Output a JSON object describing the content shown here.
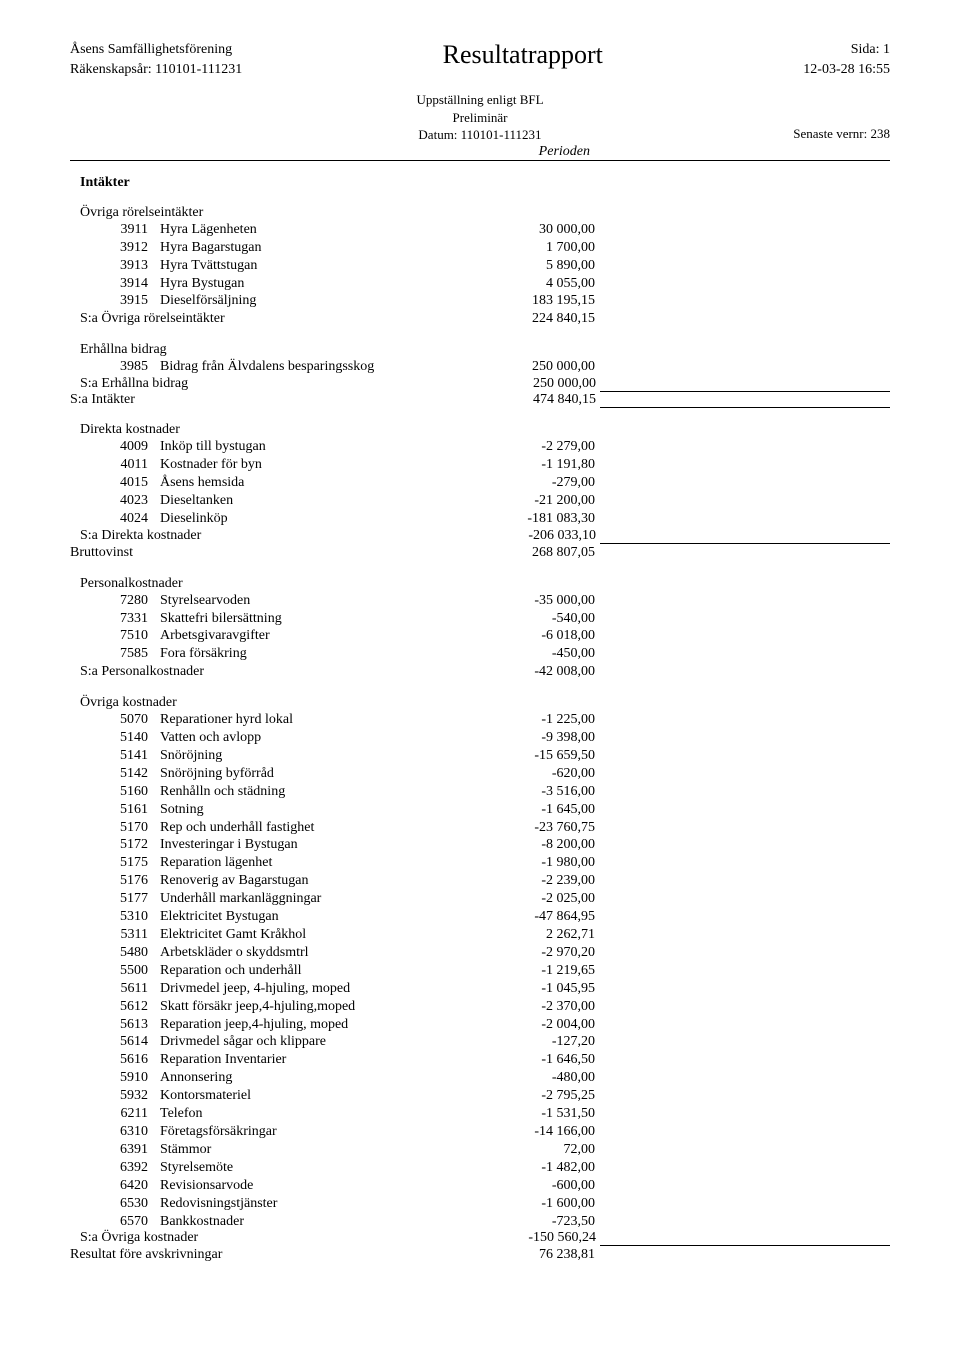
{
  "header": {
    "org": "Åsens Samfällighetsförening",
    "fiscal_year": "Räkenskapsår: 110101-111231",
    "title": "Resultatrapport",
    "page": "Sida: 1",
    "datetime": "12-03-28  16:55",
    "sub1": "Uppställning enligt BFL",
    "sub2": "Preliminär",
    "sub3": "Datum: 110101-111231",
    "vernr": "Senaste vernr: 238",
    "period": "Perioden"
  },
  "sections": {
    "intakter_title": "Intäkter",
    "ovriga_intakter_title": "Övriga rörelseintäkter",
    "ovriga_intakter": [
      {
        "code": "3911",
        "label": "Hyra Lägenheten",
        "value": "30 000,00"
      },
      {
        "code": "3912",
        "label": "Hyra Bagarstugan",
        "value": "1 700,00"
      },
      {
        "code": "3913",
        "label": "Hyra Tvättstugan",
        "value": "5 890,00"
      },
      {
        "code": "3914",
        "label": "Hyra Bystugan",
        "value": "4 055,00"
      },
      {
        "code": "3915",
        "label": "Dieselförsäljning",
        "value": "183 195,15"
      }
    ],
    "sa_ovriga_intakter": {
      "label": "S:a Övriga rörelseintäkter",
      "value": "224 840,15"
    },
    "erhallna_title": "Erhållna bidrag",
    "erhallna": [
      {
        "code": "3985",
        "label": "Bidrag från Älvdalens besparingsskog",
        "value": "250 000,00"
      }
    ],
    "sa_erhallna": {
      "label": "S:a Erhållna bidrag",
      "value": "250 000,00"
    },
    "sa_intakter": {
      "label": "S:a Intäkter",
      "value": "474 840,15"
    },
    "direkta_title": "Direkta kostnader",
    "direkta": [
      {
        "code": "4009",
        "label": "Inköp till bystugan",
        "value": "-2 279,00"
      },
      {
        "code": "4011",
        "label": "Kostnader för byn",
        "value": "-1 191,80"
      },
      {
        "code": "4015",
        "label": "Åsens hemsida",
        "value": "-279,00"
      },
      {
        "code": "4023",
        "label": "Dieseltanken",
        "value": "-21 200,00"
      },
      {
        "code": "4024",
        "label": "Dieselinköp",
        "value": "-181 083,30"
      }
    ],
    "sa_direkta": {
      "label": "S:a Direkta kostnader",
      "value": "-206 033,10"
    },
    "bruttovinst": {
      "label": "Bruttovinst",
      "value": "268 807,05"
    },
    "personal_title": "Personalkostnader",
    "personal": [
      {
        "code": "7280",
        "label": "Styrelsearvoden",
        "value": "-35 000,00"
      },
      {
        "code": "7331",
        "label": "Skattefri bilersättning",
        "value": "-540,00"
      },
      {
        "code": "7510",
        "label": "Arbetsgivaravgifter",
        "value": "-6 018,00"
      },
      {
        "code": "7585",
        "label": "Fora försäkring",
        "value": "-450,00"
      }
    ],
    "sa_personal": {
      "label": "S:a Personalkostnader",
      "value": "-42 008,00"
    },
    "ovriga_kostnader_title": "Övriga kostnader",
    "ovriga_kostnader": [
      {
        "code": "5070",
        "label": "Reparationer hyrd lokal",
        "value": "-1 225,00"
      },
      {
        "code": "5140",
        "label": "Vatten och avlopp",
        "value": "-9 398,00"
      },
      {
        "code": "5141",
        "label": "Snöröjning",
        "value": "-15 659,50"
      },
      {
        "code": "5142",
        "label": "Snöröjning byförråd",
        "value": "-620,00"
      },
      {
        "code": "5160",
        "label": "Renhålln och städning",
        "value": "-3 516,00"
      },
      {
        "code": "5161",
        "label": "Sotning",
        "value": "-1 645,00"
      },
      {
        "code": "5170",
        "label": "Rep och underhåll fastighet",
        "value": "-23 760,75"
      },
      {
        "code": "5172",
        "label": "Investeringar i Bystugan",
        "value": "-8 200,00"
      },
      {
        "code": "5175",
        "label": "Reparation lägenhet",
        "value": "-1 980,00"
      },
      {
        "code": "5176",
        "label": "Renoverig av Bagarstugan",
        "value": "-2 239,00"
      },
      {
        "code": "5177",
        "label": "Underhåll markanläggningar",
        "value": "-2 025,00"
      },
      {
        "code": "5310",
        "label": "Elektricitet Bystugan",
        "value": "-47 864,95"
      },
      {
        "code": "5311",
        "label": "Elektricitet Gamt Kråkhol",
        "value": "2 262,71"
      },
      {
        "code": "5480",
        "label": "Arbetskläder o skyddsmtrl",
        "value": "-2 970,20"
      },
      {
        "code": "5500",
        "label": "Reparation och underhåll",
        "value": "-1 219,65"
      },
      {
        "code": "5611",
        "label": "Drivmedel jeep, 4-hjuling, moped",
        "value": "-1 045,95"
      },
      {
        "code": "5612",
        "label": "Skatt försäkr jeep,4-hjuling,moped",
        "value": "-2 370,00"
      },
      {
        "code": "5613",
        "label": "Reparation jeep,4-hjuling, moped",
        "value": "-2 004,00"
      },
      {
        "code": "5614",
        "label": "Drivmedel sågar och klippare",
        "value": "-127,20"
      },
      {
        "code": "5616",
        "label": "Reparation Inventarier",
        "value": "-1 646,50"
      },
      {
        "code": "5910",
        "label": "Annonsering",
        "value": "-480,00"
      },
      {
        "code": "5932",
        "label": "Kontorsmateriel",
        "value": "-2 795,25"
      },
      {
        "code": "6211",
        "label": "Telefon",
        "value": "-1 531,50"
      },
      {
        "code": "6310",
        "label": "Företagsförsäkringar",
        "value": "-14 166,00"
      },
      {
        "code": "6391",
        "label": "Stämmor",
        "value": "72,00"
      },
      {
        "code": "6392",
        "label": "Styrelsemöte",
        "value": "-1 482,00"
      },
      {
        "code": "6420",
        "label": "Revisionsarvode",
        "value": "-600,00"
      },
      {
        "code": "6530",
        "label": "Redovisningstjänster",
        "value": "-1 600,00"
      },
      {
        "code": "6570",
        "label": "Bankkostnader",
        "value": "-723,50"
      }
    ],
    "sa_ovriga_kostnader": {
      "label": "S:a Övriga kostnader",
      "value": "-150 560,24"
    },
    "resultat": {
      "label": "Resultat före avskrivningar",
      "value": "76 238,81"
    }
  }
}
